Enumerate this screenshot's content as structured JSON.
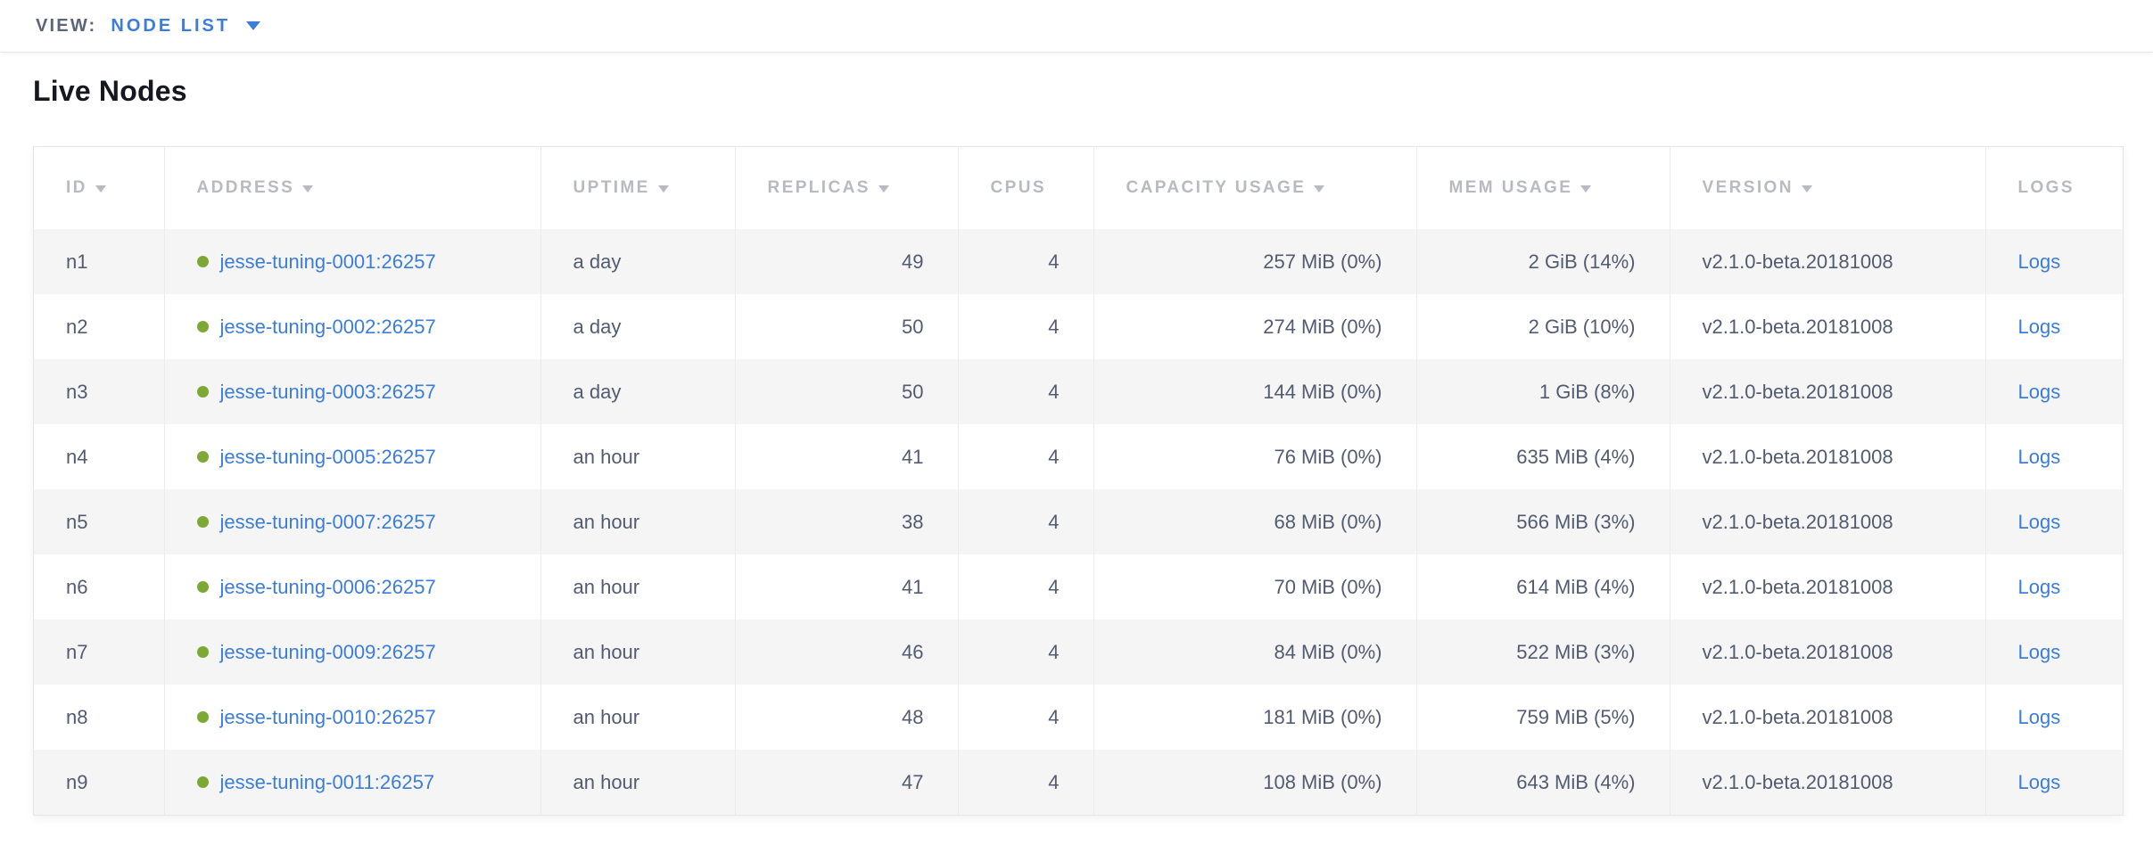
{
  "view_bar": {
    "label": "VIEW:",
    "selected_view": "NODE LIST"
  },
  "page": {
    "title": "Live Nodes"
  },
  "table": {
    "columns": [
      {
        "label": "ID",
        "sortable": true
      },
      {
        "label": "ADDRESS",
        "sortable": true
      },
      {
        "label": "UPTIME",
        "sortable": true
      },
      {
        "label": "REPLICAS",
        "sortable": true
      },
      {
        "label": "CPUS",
        "sortable": false
      },
      {
        "label": "CAPACITY USAGE",
        "sortable": true
      },
      {
        "label": "MEM USAGE",
        "sortable": true
      },
      {
        "label": "VERSION",
        "sortable": true
      },
      {
        "label": "LOGS",
        "sortable": false
      }
    ],
    "rows": [
      {
        "id": "n1",
        "status": "healthy",
        "address": "jesse-tuning-0001:26257",
        "uptime": "a day",
        "replicas": "49",
        "cpus": "4",
        "capacity_usage": "257 MiB (0%)",
        "mem_usage": "2 GiB (14%)",
        "version": "v2.1.0-beta.20181008",
        "logs_label": "Logs"
      },
      {
        "id": "n2",
        "status": "healthy",
        "address": "jesse-tuning-0002:26257",
        "uptime": "a day",
        "replicas": "50",
        "cpus": "4",
        "capacity_usage": "274 MiB (0%)",
        "mem_usage": "2 GiB (10%)",
        "version": "v2.1.0-beta.20181008",
        "logs_label": "Logs"
      },
      {
        "id": "n3",
        "status": "healthy",
        "address": "jesse-tuning-0003:26257",
        "uptime": "a day",
        "replicas": "50",
        "cpus": "4",
        "capacity_usage": "144 MiB (0%)",
        "mem_usage": "1 GiB (8%)",
        "version": "v2.1.0-beta.20181008",
        "logs_label": "Logs"
      },
      {
        "id": "n4",
        "status": "healthy",
        "address": "jesse-tuning-0005:26257",
        "uptime": "an hour",
        "replicas": "41",
        "cpus": "4",
        "capacity_usage": "76 MiB (0%)",
        "mem_usage": "635 MiB (4%)",
        "version": "v2.1.0-beta.20181008",
        "logs_label": "Logs"
      },
      {
        "id": "n5",
        "status": "healthy",
        "address": "jesse-tuning-0007:26257",
        "uptime": "an hour",
        "replicas": "38",
        "cpus": "4",
        "capacity_usage": "68 MiB (0%)",
        "mem_usage": "566 MiB (3%)",
        "version": "v2.1.0-beta.20181008",
        "logs_label": "Logs"
      },
      {
        "id": "n6",
        "status": "healthy",
        "address": "jesse-tuning-0006:26257",
        "uptime": "an hour",
        "replicas": "41",
        "cpus": "4",
        "capacity_usage": "70 MiB (0%)",
        "mem_usage": "614 MiB (4%)",
        "version": "v2.1.0-beta.20181008",
        "logs_label": "Logs"
      },
      {
        "id": "n7",
        "status": "healthy",
        "address": "jesse-tuning-0009:26257",
        "uptime": "an hour",
        "replicas": "46",
        "cpus": "4",
        "capacity_usage": "84 MiB (0%)",
        "mem_usage": "522 MiB (3%)",
        "version": "v2.1.0-beta.20181008",
        "logs_label": "Logs"
      },
      {
        "id": "n8",
        "status": "healthy",
        "address": "jesse-tuning-0010:26257",
        "uptime": "an hour",
        "replicas": "48",
        "cpus": "4",
        "capacity_usage": "181 MiB (0%)",
        "mem_usage": "759 MiB (5%)",
        "version": "v2.1.0-beta.20181008",
        "logs_label": "Logs"
      },
      {
        "id": "n9",
        "status": "healthy",
        "address": "jesse-tuning-0011:26257",
        "uptime": "an hour",
        "replicas": "47",
        "cpus": "4",
        "capacity_usage": "108 MiB (0%)",
        "mem_usage": "643 MiB (4%)",
        "version": "v2.1.0-beta.20181008",
        "logs_label": "Logs"
      }
    ]
  },
  "colors": {
    "link_blue": "#3b7dd8",
    "healthy_green": "#7ca933",
    "header_text": "#b7bac0",
    "body_text": "#525b70",
    "row_stripe": "#f5f5f5"
  }
}
